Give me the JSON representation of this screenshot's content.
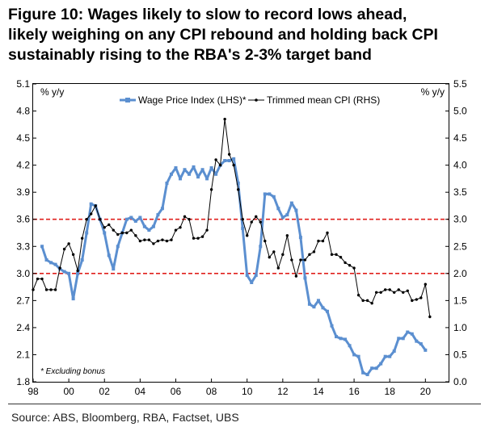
{
  "title_lines": [
    "Figure 10: Wages likely to slow to record lows ahead,",
    "likely weighing on any CPI rebound and holding back CPI",
    "sustainably rising to the RBA's 2-3% target band"
  ],
  "source": "Source: ABS, Bloomberg, RBA, Factset, UBS",
  "chart_data": {
    "type": "line",
    "title": "Figure 10: Wages likely to slow to record lows ahead, likely weighing on any CPI rebound and holding back CPI sustainably rising to the RBA's 2-3% target band",
    "xlabel": "",
    "left_axis_unit": "% y/y",
    "right_axis_unit": "% y/y",
    "footnote": "* Excluding bonus",
    "x_tick_labels": [
      "98",
      "00",
      "02",
      "04",
      "06",
      "08",
      "10",
      "12",
      "14",
      "16",
      "18",
      "20"
    ],
    "x_tick_years": [
      1998,
      2000,
      2002,
      2004,
      2006,
      2008,
      2010,
      2012,
      2014,
      2016,
      2018,
      2020
    ],
    "xlim": [
      1998,
      2021.3
    ],
    "ylim_left": [
      1.8,
      5.1
    ],
    "ylim_right": [
      0.0,
      5.5
    ],
    "left_ticks": [
      "1.8",
      "2.1",
      "2.4",
      "2.7",
      "3.0",
      "3.3",
      "3.6",
      "3.9",
      "4.2",
      "4.5",
      "4.8",
      "5.1"
    ],
    "right_ticks": [
      "0.0",
      "0.5",
      "1.0",
      "1.5",
      "2.0",
      "2.5",
      "3.0",
      "3.5",
      "4.0",
      "4.5",
      "5.0",
      "5.5"
    ],
    "target_band_rhs": [
      2.0,
      3.0
    ],
    "series": [
      {
        "name": "Wage Price Index (LHS)*",
        "axis": "left",
        "color": "#5b8fd0",
        "x": [
          1998.5,
          1998.75,
          1999.0,
          1999.25,
          1999.5,
          1999.75,
          2000.0,
          2000.25,
          2000.5,
          2000.75,
          2001.0,
          2001.25,
          2001.5,
          2001.75,
          2002.0,
          2002.25,
          2002.5,
          2002.75,
          2003.0,
          2003.25,
          2003.5,
          2003.75,
          2004.0,
          2004.25,
          2004.5,
          2004.75,
          2005.0,
          2005.25,
          2005.5,
          2005.75,
          2006.0,
          2006.25,
          2006.5,
          2006.75,
          2007.0,
          2007.25,
          2007.5,
          2007.75,
          2008.0,
          2008.25,
          2008.5,
          2008.75,
          2009.0,
          2009.25,
          2009.5,
          2009.75,
          2010.0,
          2010.25,
          2010.5,
          2010.75,
          2011.0,
          2011.25,
          2011.5,
          2011.75,
          2012.0,
          2012.25,
          2012.5,
          2012.75,
          2013.0,
          2013.25,
          2013.5,
          2013.75,
          2014.0,
          2014.25,
          2014.5,
          2014.75,
          2015.0,
          2015.25,
          2015.5,
          2015.75,
          2016.0,
          2016.25,
          2016.5,
          2016.75,
          2017.0,
          2017.25,
          2017.5,
          2017.75,
          2018.0,
          2018.25,
          2018.5,
          2018.75,
          2019.0,
          2019.25,
          2019.5,
          2019.75,
          2020.0
        ],
        "values": [
          3.3,
          3.15,
          3.12,
          3.1,
          3.05,
          3.02,
          3.0,
          2.72,
          3.0,
          3.15,
          3.45,
          3.77,
          3.75,
          3.6,
          3.45,
          3.2,
          3.05,
          3.3,
          3.45,
          3.6,
          3.62,
          3.58,
          3.62,
          3.52,
          3.48,
          3.52,
          3.65,
          3.72,
          4.0,
          4.1,
          4.17,
          4.05,
          4.15,
          4.1,
          4.18,
          4.07,
          4.15,
          4.05,
          4.17,
          4.1,
          4.2,
          4.25,
          4.25,
          4.27,
          4.0,
          3.5,
          2.98,
          2.9,
          2.98,
          3.3,
          3.88,
          3.88,
          3.85,
          3.72,
          3.62,
          3.65,
          3.78,
          3.7,
          3.4,
          2.95,
          2.66,
          2.63,
          2.7,
          2.62,
          2.58,
          2.42,
          2.3,
          2.28,
          2.27,
          2.2,
          2.1,
          2.08,
          1.9,
          1.88,
          1.95,
          1.95,
          2.0,
          2.08,
          2.08,
          2.14,
          2.28,
          2.28,
          2.35,
          2.33,
          2.25,
          2.22,
          2.15
        ]
      },
      {
        "name": "Trimmed mean CPI (RHS)",
        "axis": "right",
        "color": "#000000",
        "x": [
          1998.0,
          1998.25,
          1998.5,
          1998.75,
          1999.0,
          1999.25,
          1999.5,
          1999.75,
          2000.0,
          2000.25,
          2000.5,
          2000.75,
          2001.0,
          2001.25,
          2001.5,
          2001.75,
          2002.0,
          2002.25,
          2002.5,
          2002.75,
          2003.0,
          2003.25,
          2003.5,
          2003.75,
          2004.0,
          2004.25,
          2004.5,
          2004.75,
          2005.0,
          2005.25,
          2005.5,
          2005.75,
          2006.0,
          2006.25,
          2006.5,
          2006.75,
          2007.0,
          2007.25,
          2007.5,
          2007.75,
          2008.0,
          2008.25,
          2008.5,
          2008.75,
          2009.0,
          2009.25,
          2009.5,
          2009.75,
          2010.0,
          2010.25,
          2010.5,
          2010.75,
          2011.0,
          2011.25,
          2011.5,
          2011.75,
          2012.0,
          2012.25,
          2012.5,
          2012.75,
          2013.0,
          2013.25,
          2013.5,
          2013.75,
          2014.0,
          2014.25,
          2014.5,
          2014.75,
          2015.0,
          2015.25,
          2015.5,
          2015.75,
          2016.0,
          2016.25,
          2016.5,
          2016.75,
          2017.0,
          2017.25,
          2017.5,
          2017.75,
          2018.0,
          2018.25,
          2018.5,
          2018.75,
          2019.0,
          2019.25,
          2019.5,
          2019.75,
          2020.0,
          2020.25
        ],
        "values": [
          1.7,
          1.9,
          1.9,
          1.7,
          1.7,
          1.7,
          2.1,
          2.45,
          2.55,
          2.35,
          2.05,
          2.65,
          3.0,
          3.1,
          3.25,
          3.0,
          2.85,
          2.9,
          2.8,
          2.72,
          2.75,
          2.75,
          2.8,
          2.7,
          2.6,
          2.62,
          2.62,
          2.55,
          2.6,
          2.62,
          2.6,
          2.62,
          2.8,
          2.85,
          3.05,
          3.0,
          2.65,
          2.65,
          2.68,
          2.8,
          3.55,
          4.1,
          4.0,
          4.85,
          4.2,
          4.0,
          3.55,
          3.0,
          2.7,
          2.95,
          3.05,
          2.95,
          2.6,
          2.3,
          2.4,
          2.1,
          2.35,
          2.7,
          2.25,
          1.95,
          2.25,
          2.25,
          2.35,
          2.4,
          2.6,
          2.6,
          2.75,
          2.35,
          2.35,
          2.3,
          2.2,
          2.15,
          2.1,
          1.6,
          1.5,
          1.5,
          1.45,
          1.65,
          1.65,
          1.7,
          1.7,
          1.65,
          1.7,
          1.65,
          1.68,
          1.5,
          1.52,
          1.55,
          1.8,
          1.2
        ]
      }
    ]
  }
}
